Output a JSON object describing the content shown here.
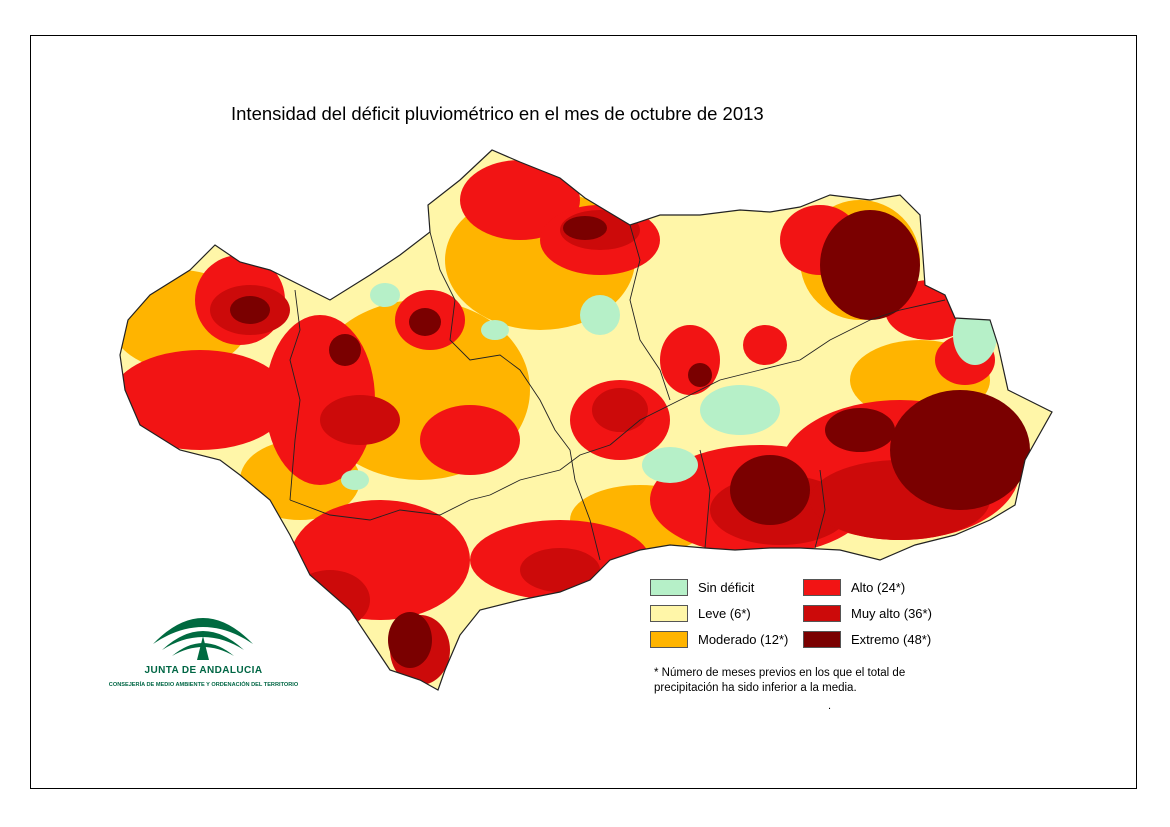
{
  "title": "Intensidad del déficit pluviométrico en el mes de octubre de 2013",
  "legend": {
    "items": [
      {
        "label": "Sin déficit",
        "color": "#b6f0c8"
      },
      {
        "label": "Leve (6*)",
        "color": "#fff6a8"
      },
      {
        "label": "Moderado (12*)",
        "color": "#ffb400"
      },
      {
        "label": "Alto (24*)",
        "color": "#f21414"
      },
      {
        "label": "Muy alto (36*)",
        "color": "#cc0a0a"
      },
      {
        "label": "Extremo (48*)",
        "color": "#7a0000"
      }
    ],
    "note": "* Número de meses previos en los que el total de precipitación ha sido inferior a la media.",
    "dot": "."
  },
  "logo": {
    "name": "JUNTA DE ANDALUCIA",
    "subtitle": "CONSEJERÍA DE MEDIO AMBIENTE Y ORDENACIÓN DEL TERRITORIO",
    "color": "#006a40"
  }
}
